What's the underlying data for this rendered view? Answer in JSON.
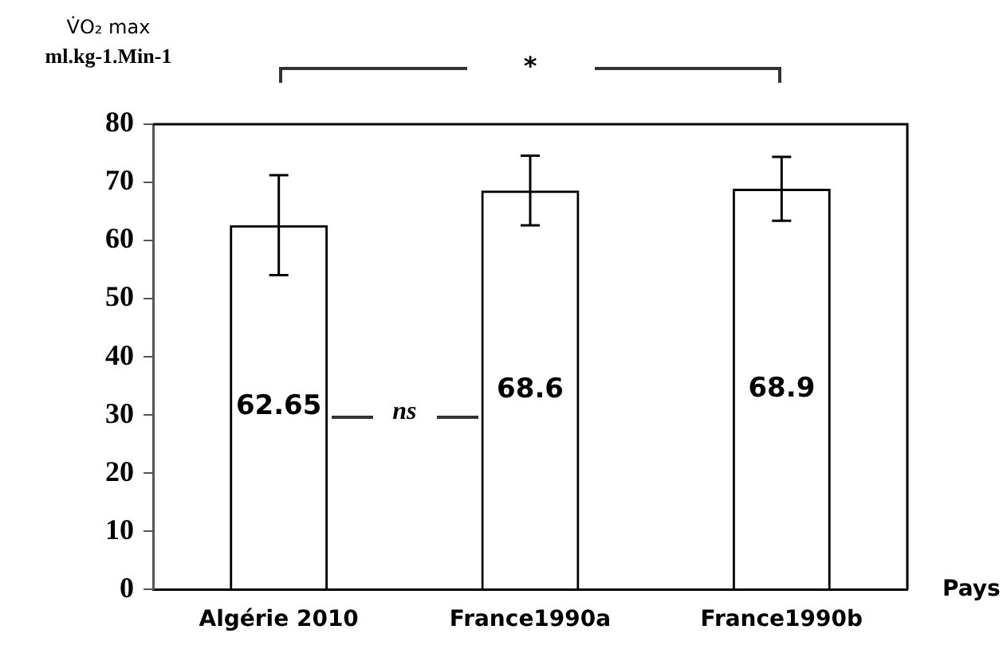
{
  "chart_data": {
    "type": "bar",
    "ylabel": "V̇O₂ max\nml.kg-1.Min-1",
    "xlabel": "Pays",
    "categories": [
      "Algérie 2010",
      "France1990a",
      "France1990b"
    ],
    "values": [
      62.65,
      68.6,
      68.9
    ],
    "errors": [
      8.6,
      6,
      5.5
    ],
    "color": "#000000",
    "ylim": [
      0,
      80
    ],
    "yticks": [
      0,
      10,
      20,
      30,
      40,
      50,
      60,
      70,
      80
    ],
    "grid": false,
    "legend": false,
    "data_labels": true,
    "annotations": [
      "*",
      "ns"
    ]
  }
}
